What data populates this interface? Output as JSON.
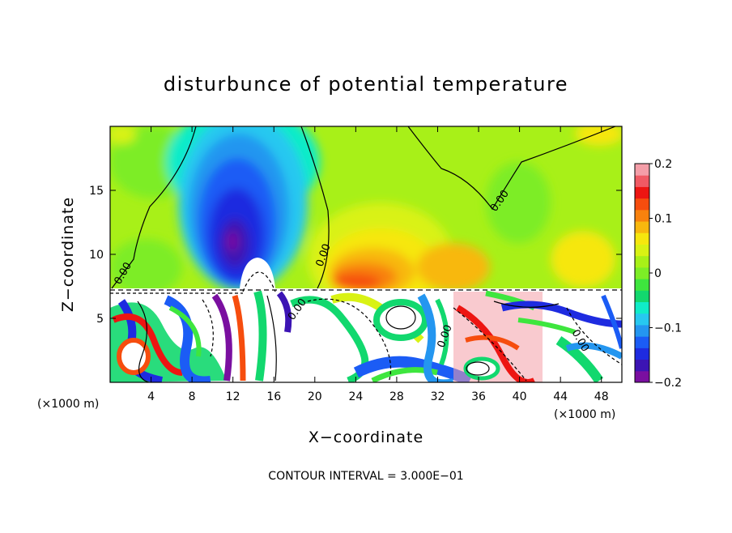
{
  "chart_data": {
    "type": "heatmap",
    "title": "disturbunce of potential temperature",
    "xlabel": "X−coordinate",
    "ylabel": "Z−coordinate",
    "x_unit_label": "(×1000 m)",
    "z_unit_label": "(×1000 m)",
    "xlim": [
      0,
      50
    ],
    "ylim": [
      0,
      20
    ],
    "x_ticks": [
      "4",
      "8",
      "12",
      "16",
      "20",
      "24",
      "28",
      "32",
      "36",
      "40",
      "44",
      "48"
    ],
    "x_tick_values": [
      4,
      8,
      12,
      16,
      20,
      24,
      28,
      32,
      36,
      40,
      44,
      48
    ],
    "y_ticks": [
      "5",
      "10",
      "15"
    ],
    "y_tick_values": [
      5,
      10,
      15
    ],
    "colorbar": {
      "range": [
        -0.2,
        0.2
      ],
      "tick_labels": [
        "0.2",
        "0.1",
        "0",
        "−0.1",
        "−0.2"
      ],
      "tick_values": [
        0.2,
        0.1,
        0,
        -0.1,
        -0.2
      ],
      "colors": [
        "#7a0fa0",
        "#3c14b4",
        "#1e2be0",
        "#1b5cf5",
        "#2496f0",
        "#27c8f0",
        "#10ecc8",
        "#12d86e",
        "#3ee63e",
        "#7ded26",
        "#a8f018",
        "#d9f214",
        "#f6e70e",
        "#f8b80e",
        "#f8820e",
        "#f64d0e",
        "#ed1512",
        "#f05a64",
        "#f49ea8"
      ]
    },
    "contour_labels": [
      "0.00",
      "0.00",
      "0.00",
      "0.00",
      "0.00",
      "0.00"
    ],
    "footer": "CONTOUR INTERVAL = 3.000E−01"
  }
}
